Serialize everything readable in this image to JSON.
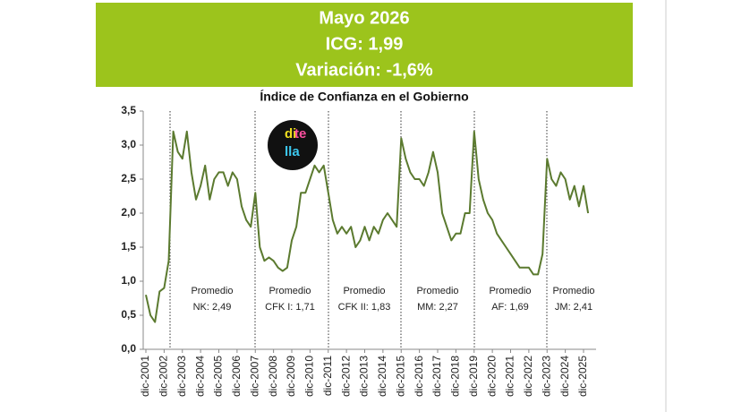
{
  "header": {
    "lines": [
      "Mayo 2026",
      "ICG: 1,99",
      "Variación: -1,6%"
    ]
  },
  "logo": [
    "di",
    "te",
    "lla"
  ],
  "chart_data": {
    "type": "line",
    "title": "Índice de Confianza en el Gobierno",
    "color": "#5b7a2f",
    "categories": [
      "dic-2001",
      null,
      null,
      null,
      "dic-2002",
      null,
      null,
      null,
      "dic-2003",
      null,
      null,
      null,
      "dic-2004",
      null,
      null,
      null,
      "dic-2005",
      null,
      null,
      null,
      "dic-2006",
      null,
      null,
      null,
      "dic-2007",
      null,
      null,
      null,
      "dic-2008",
      null,
      null,
      null,
      "dic-2009",
      null,
      null,
      null,
      "dic-2010",
      null,
      null,
      null,
      "dic-2011",
      null,
      null,
      null,
      "dic-2012",
      null,
      null,
      null,
      "dic-2013",
      null,
      null,
      null,
      "dic-2014",
      null,
      null,
      null,
      "dic-2015",
      null,
      null,
      null,
      "dic-2016",
      null,
      null,
      null,
      "dic-2017",
      null,
      null,
      null,
      "dic-2018",
      null,
      null,
      null,
      "dic-2019",
      null,
      null,
      null,
      "dic-2020",
      null,
      null,
      null,
      "dic-2021",
      null,
      null,
      null,
      "dic-2022",
      null,
      null,
      null,
      "dic-2023",
      null,
      null,
      null,
      "dic-2024",
      null,
      null,
      null,
      "dic-2025",
      null
    ],
    "values": [
      0.8,
      0.5,
      0.4,
      0.85,
      0.9,
      1.3,
      3.2,
      2.9,
      2.8,
      3.2,
      2.6,
      2.2,
      2.4,
      2.7,
      2.2,
      2.5,
      2.6,
      2.6,
      2.4,
      2.6,
      2.5,
      2.1,
      1.9,
      1.8,
      2.3,
      1.5,
      1.3,
      1.35,
      1.3,
      1.2,
      1.15,
      1.2,
      1.6,
      1.8,
      2.3,
      2.3,
      2.5,
      2.7,
      2.6,
      2.7,
      2.3,
      1.9,
      1.7,
      1.8,
      1.7,
      1.8,
      1.5,
      1.6,
      1.8,
      1.6,
      1.8,
      1.7,
      1.9,
      2.0,
      1.9,
      1.8,
      3.1,
      2.8,
      2.6,
      2.5,
      2.5,
      2.4,
      2.6,
      2.9,
      2.6,
      2.0,
      1.8,
      1.6,
      1.7,
      1.7,
      2.0,
      2.0,
      3.2,
      2.5,
      2.2,
      2.0,
      1.9,
      1.7,
      1.6,
      1.5,
      1.4,
      1.3,
      1.2,
      1.2,
      1.2,
      1.1,
      1.1,
      1.4,
      2.8,
      2.5,
      2.4,
      2.6,
      2.5,
      2.2,
      2.4,
      2.1,
      2.4,
      2.0
    ],
    "ylim": [
      0,
      3.5
    ],
    "yticks": [
      {
        "value": 0,
        "label": "0,0"
      },
      {
        "value": 0.5,
        "label": "0,5"
      },
      {
        "value": 1,
        "label": "1,0"
      },
      {
        "value": 1.5,
        "label": "1,5"
      },
      {
        "value": 2,
        "label": "2,0"
      },
      {
        "value": 2.5,
        "label": "2,5"
      },
      {
        "value": 3,
        "label": "3,0"
      },
      {
        "value": 3.5,
        "label": "3,5"
      }
    ],
    "grid": false,
    "annotations": [
      {
        "title": "Promedio",
        "text": "NK: 2,49"
      },
      {
        "title": "Promedio",
        "text": "CFK I: 1,71"
      },
      {
        "title": "Promedio",
        "text": "CFK II: 1,83"
      },
      {
        "title": "Promedio",
        "text": "MM: 2,27"
      },
      {
        "title": "Promedio",
        "text": "AF: 1,69"
      },
      {
        "title": "Promedio",
        "text": "JM: 2,41"
      }
    ]
  }
}
